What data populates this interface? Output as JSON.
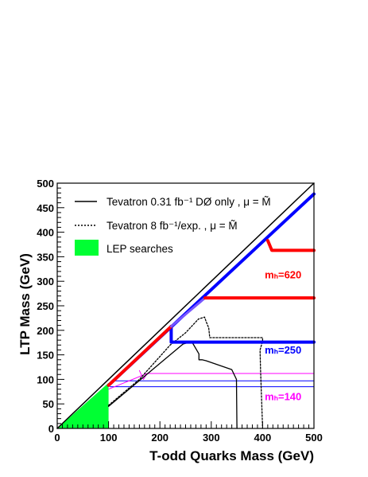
{
  "chart_data": {
    "type": "line",
    "xlabel": "T-odd Quarks  Mass (GeV)",
    "ylabel": "LTP Mass (GeV)",
    "xlim": [
      0,
      500
    ],
    "ylim": [
      0,
      500
    ],
    "x_ticks": [
      0,
      100,
      200,
      300,
      400,
      500
    ],
    "y_ticks": [
      0,
      50,
      100,
      150,
      200,
      250,
      300,
      350,
      400,
      450,
      500
    ],
    "grid": false,
    "legend": {
      "placement": "top-left",
      "entries": [
        {
          "label": "Tevatron 0.31 fb⁻¹ DØ only , μ = M̃",
          "style": "solid",
          "color": "#000000"
        },
        {
          "label": "Tevatron 8 fb⁻¹/exp. , μ = M̃",
          "style": "dotted",
          "color": "#000000"
        },
        {
          "label": "LEP searches",
          "style": "fill",
          "color": "#00ff33"
        }
      ]
    },
    "annotations": [
      {
        "text": "mₕ=620",
        "x": 440,
        "y": 306,
        "color": "#ff0000"
      },
      {
        "text": "mₕ=250",
        "x": 440,
        "y": 153,
        "color": "#0000ff"
      },
      {
        "text": "mₕ=140",
        "x": 440,
        "y": 58,
        "color": "#ff00ff"
      }
    ],
    "series": [
      {
        "name": "Tevatron 0.31 fb⁻¹ DØ only , μ = M̃",
        "style": "solid",
        "color": "#000000",
        "width": 1.3,
        "x": [
          100,
          100,
          240,
          258,
          265,
          288,
          294,
          294,
          298,
          294,
          288,
          270,
          265,
          258,
          250,
          0,
          100,
          500
        ],
        "y": [
          0,
          45,
          170,
          175,
          160,
          140,
          135,
          120,
          100,
          80,
          40,
          20,
          0,
          0,
          0,
          0,
          0,
          0
        ],
        "note_segments": "see lines"
      },
      {
        "name": "Tevatron 8 fb⁻¹/exp. , μ = M̃",
        "style": "dotted",
        "color": "#000000",
        "width": 1.3
      }
    ],
    "curves": {
      "diagonal": [
        [
          0,
          0
        ],
        [
          500,
          500
        ]
      ],
      "lep_region": [
        [
          0,
          0
        ],
        [
          100,
          0
        ],
        [
          100,
          93
        ]
      ],
      "d0_only": [
        [
          100,
          45
        ],
        [
          245,
          172
        ],
        [
          262,
          177
        ],
        [
          276,
          152
        ],
        [
          276,
          140
        ],
        [
          282,
          140
        ],
        [
          290,
          138
        ],
        [
          340,
          120
        ],
        [
          349,
          100
        ],
        [
          350,
          0
        ]
      ],
      "tevatron_8fb": [
        [
          100,
          47
        ],
        [
          160,
          100
        ],
        [
          220,
          170
        ],
        [
          250,
          195
        ],
        [
          275,
          223
        ],
        [
          287,
          227
        ],
        [
          290,
          218
        ],
        [
          295,
          205
        ],
        [
          297,
          185
        ],
        [
          400,
          185
        ],
        [
          400,
          178
        ],
        [
          395,
          160
        ],
        [
          396,
          120
        ],
        [
          398,
          60
        ],
        [
          400,
          0
        ]
      ],
      "red_thin": [
        [
          160,
          118
        ],
        [
          175,
          112
        ],
        [
          500,
          112
        ]
      ],
      "magenta_thin": [
        [
          100,
          80
        ],
        [
          175,
          112
        ],
        [
          500,
          112
        ]
      ],
      "blue_thin_1": [
        [
          103,
          85
        ],
        [
          500,
          85
        ]
      ],
      "blue_thin_2": [
        [
          108,
          97
        ],
        [
          500,
          97
        ]
      ],
      "blue_thick_diag": [
        [
          100,
          88
        ],
        [
          500,
          478
        ]
      ],
      "blue_thick_h": [
        [
          222,
          208
        ],
        [
          222,
          176
        ],
        [
          500,
          176
        ]
      ],
      "red_thick_diag": [
        [
          100,
          88
        ],
        [
          222,
          208
        ]
      ],
      "red_thick_h1": [
        [
          288,
          266
        ],
        [
          500,
          266
        ]
      ],
      "red_thick_h2": [
        [
          410,
          383
        ],
        [
          418,
          363
        ],
        [
          500,
          363
        ]
      ]
    }
  }
}
